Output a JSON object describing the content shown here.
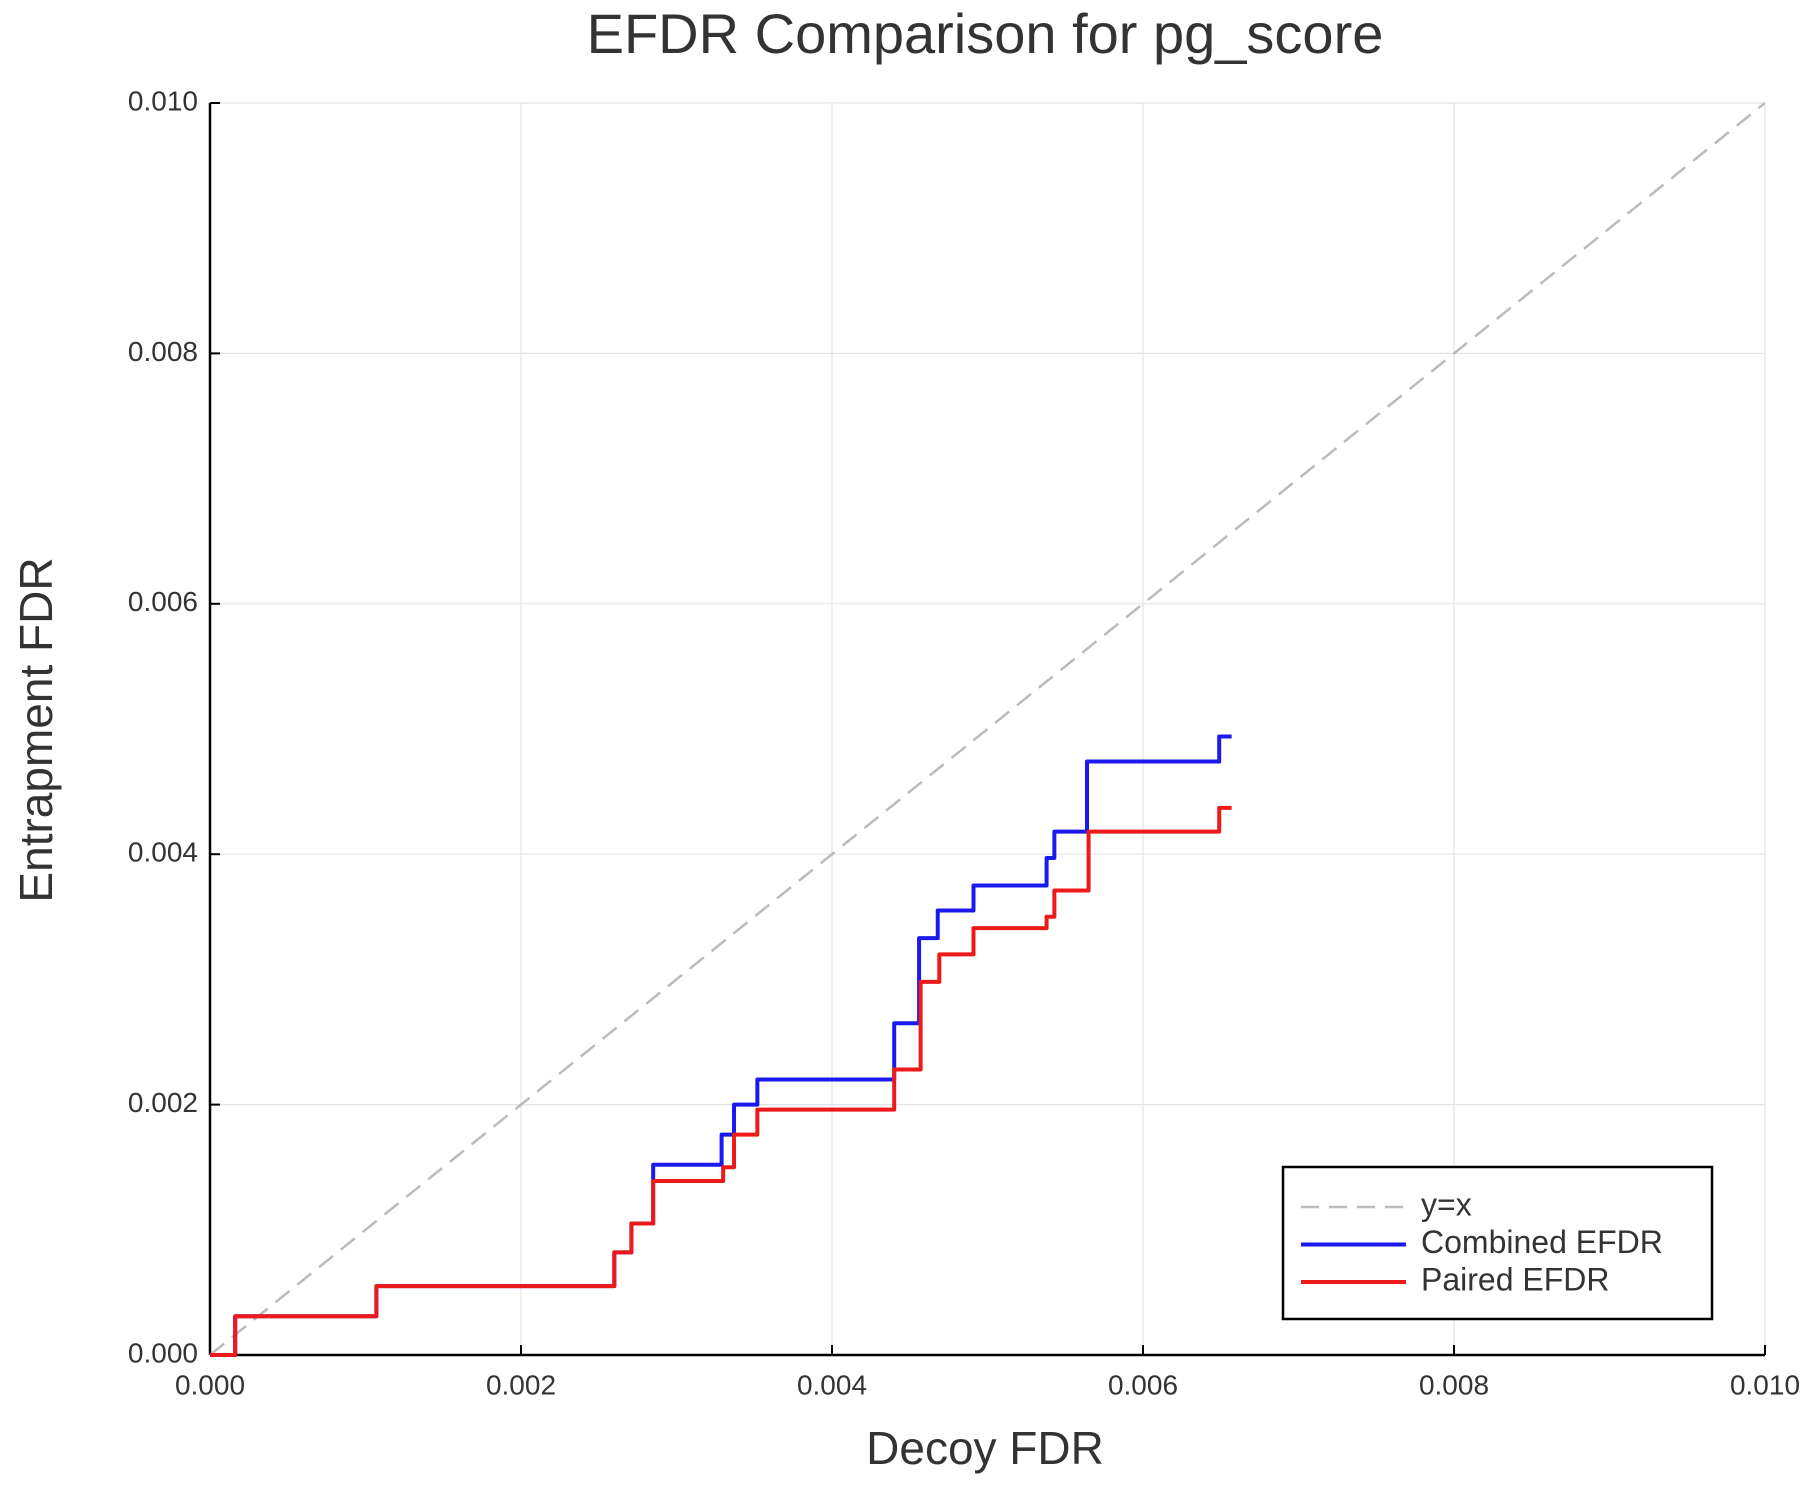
{
  "chart_data": {
    "type": "line",
    "title": "EFDR Comparison for pg_score",
    "x_label": "Decoy FDR",
    "y_label": "Entrapment FDR",
    "xlim": [
      0,
      0.01
    ],
    "ylim": [
      0,
      0.01
    ],
    "xticks": [
      {
        "value": 0,
        "label": "0.000"
      },
      {
        "value": 0.002,
        "label": "0.002"
      },
      {
        "value": 0.004,
        "label": "0.004"
      },
      {
        "value": 0.006,
        "label": "0.006"
      },
      {
        "value": 0.008,
        "label": "0.008"
      },
      {
        "value": 0.01,
        "label": "0.010"
      }
    ],
    "yticks": [
      {
        "value": 0,
        "label": "0.000"
      },
      {
        "value": 0.002,
        "label": "0.002"
      },
      {
        "value": 0.004,
        "label": "0.004"
      },
      {
        "value": 0.006,
        "label": "0.006"
      },
      {
        "value": 0.008,
        "label": "0.008"
      },
      {
        "value": 0.01,
        "label": "0.010"
      }
    ],
    "grid": true,
    "legend": "lower right",
    "series": [
      {
        "name": "y=x",
        "color": "#bbbbbb",
        "dashed": true,
        "x": [
          0,
          0.01
        ],
        "values": [
          0,
          0.01
        ]
      },
      {
        "name": "Combined EFDR",
        "color": "#1a1aee",
        "dashed": false,
        "x": [
          0,
          0.000162,
          0.000162,
          0.00107,
          0.00107,
          0.0026,
          0.0026,
          0.00271,
          0.00271,
          0.00285,
          0.00285,
          0.00329,
          0.00329,
          0.00337,
          0.00337,
          0.00352,
          0.00352,
          0.0044,
          0.0044,
          0.00456,
          0.00456,
          0.00468,
          0.00468,
          0.00491,
          0.00491,
          0.00538,
          0.00538,
          0.00543,
          0.00543,
          0.00564,
          0.00564,
          0.00649,
          0.00649,
          0.00657
        ],
        "values": [
          0,
          0,
          0.00031,
          0.00031,
          0.00055,
          0.00055,
          0.00082,
          0.00082,
          0.00105,
          0.00105,
          0.00152,
          0.00152,
          0.00176,
          0.00176,
          0.002,
          0.002,
          0.0022,
          0.0022,
          0.00265,
          0.00265,
          0.00333,
          0.00333,
          0.00355,
          0.00355,
          0.00375,
          0.00375,
          0.00397,
          0.00397,
          0.00418,
          0.00418,
          0.00474,
          0.00474,
          0.00494,
          0.00494
        ]
      },
      {
        "name": "Paired EFDR",
        "color": "#ee1a1a",
        "dashed": false,
        "x": [
          0,
          0.000162,
          0.000162,
          0.00107,
          0.00107,
          0.0026,
          0.0026,
          0.00271,
          0.00271,
          0.00285,
          0.00285,
          0.0033,
          0.0033,
          0.00337,
          0.00337,
          0.00352,
          0.00352,
          0.0044,
          0.0044,
          0.00457,
          0.00457,
          0.00469,
          0.00469,
          0.00491,
          0.00491,
          0.00538,
          0.00538,
          0.00543,
          0.00543,
          0.00565,
          0.00565,
          0.00649,
          0.00649,
          0.00657
        ],
        "values": [
          0,
          0,
          0.00031,
          0.00031,
          0.00055,
          0.00055,
          0.00082,
          0.00082,
          0.00105,
          0.00105,
          0.00139,
          0.00139,
          0.0015,
          0.0015,
          0.00176,
          0.00176,
          0.00196,
          0.00196,
          0.00228,
          0.00228,
          0.00298,
          0.00298,
          0.0032,
          0.0032,
          0.00341,
          0.00341,
          0.0035,
          0.0035,
          0.00371,
          0.00371,
          0.00418,
          0.00418,
          0.00437,
          0.00437
        ]
      }
    ]
  }
}
